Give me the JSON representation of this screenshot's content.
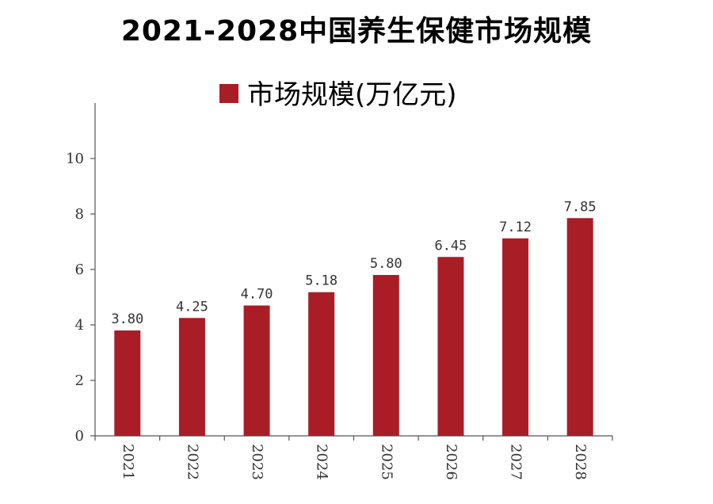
{
  "chart_data": {
    "type": "bar",
    "title": "2021-2028中国养生保健市场规模",
    "categories": [
      "2021",
      "2022",
      "2023",
      "2024",
      "2025",
      "2026",
      "2027",
      "2028"
    ],
    "series": [
      {
        "name": "市场规模(万亿元)",
        "values": [
          3.8,
          4.25,
          4.7,
          5.18,
          5.8,
          6.45,
          7.12,
          7.85
        ],
        "color": "#a91d26"
      }
    ],
    "data_labels": [
      "3.80",
      "4.25",
      "4.70",
      "5.18",
      "5.80",
      "6.45",
      "7.12",
      "7.85"
    ],
    "y_ticks": [
      "0",
      "2",
      "4",
      "6",
      "8",
      "10"
    ],
    "ylim": [
      0,
      12
    ],
    "xlabel": "",
    "ylabel": "",
    "legend_position": "top",
    "grid": false
  }
}
